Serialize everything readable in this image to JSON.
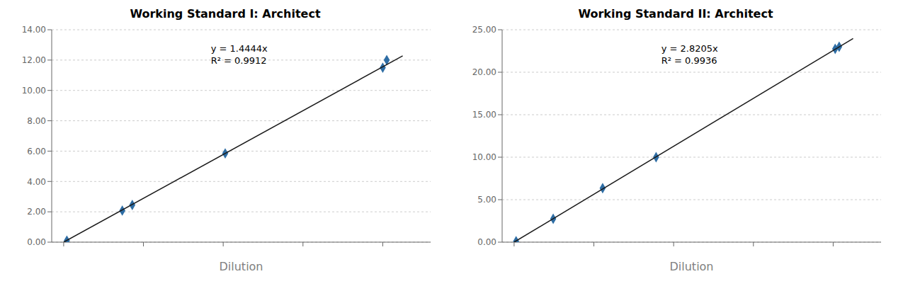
{
  "chart_data": [
    {
      "type": "scatter",
      "title": "Working Standard I: Architect",
      "x_label": "Dilution",
      "xlim": [
        -0.3,
        9.2
      ],
      "xticks": [
        0,
        2,
        4,
        6,
        8
      ],
      "ylim": [
        0,
        14
      ],
      "yticks": [
        {
          "value": 0,
          "label": "0.00"
        },
        {
          "value": 2,
          "label": "2.00"
        },
        {
          "value": 4,
          "label": "4.00"
        },
        {
          "value": 6,
          "label": "6.00"
        },
        {
          "value": 8,
          "label": "8.00"
        },
        {
          "value": 10,
          "label": "10.00"
        },
        {
          "value": 12,
          "label": "12.00"
        },
        {
          "value": 14,
          "label": "14.00"
        }
      ],
      "grid": "y",
      "tick_labels": "y",
      "annotations": [
        "y = 1.4444x",
        "R² = 0.9912"
      ],
      "series": [
        {
          "type": "scatter",
          "marker": "diamond",
          "color": "#2e6da4",
          "x": [
            0.08,
            1.47,
            1.72,
            4.05,
            8.0,
            8.1
          ],
          "values": [
            0.1,
            2.08,
            2.45,
            5.85,
            11.5,
            12.0
          ]
        },
        {
          "type": "line",
          "color": "#1a1a1a",
          "x": [
            0,
            8.5
          ],
          "values": [
            0,
            12.2774
          ]
        }
      ]
    },
    {
      "type": "scatter",
      "title": "Working Standard II: Architect",
      "x_label": "Dilution",
      "xlim": [
        -0.3,
        9.2
      ],
      "xticks": [
        0,
        2,
        4,
        6,
        8
      ],
      "ylim": [
        0,
        25
      ],
      "yticks": [
        {
          "value": 0,
          "label": "0.00"
        },
        {
          "value": 5,
          "label": "5.00"
        },
        {
          "value": 10,
          "label": "10.00"
        },
        {
          "value": 15,
          "label": "15.00"
        },
        {
          "value": 20,
          "label": "20.00"
        },
        {
          "value": 25,
          "label": "25.00"
        }
      ],
      "grid": "y",
      "tick_labels": "y",
      "annotations": [
        "y = 2.8205x",
        "R² = 0.9936"
      ],
      "series": [
        {
          "type": "scatter",
          "marker": "diamond",
          "color": "#2e6da4",
          "x": [
            0.05,
            0.98,
            2.22,
            3.56,
            8.05,
            8.15
          ],
          "values": [
            0.1,
            2.75,
            6.35,
            10.0,
            22.75,
            23.0
          ]
        },
        {
          "type": "line",
          "color": "#1a1a1a",
          "x": [
            0,
            8.5
          ],
          "values": [
            0,
            23.97425
          ]
        }
      ]
    }
  ]
}
